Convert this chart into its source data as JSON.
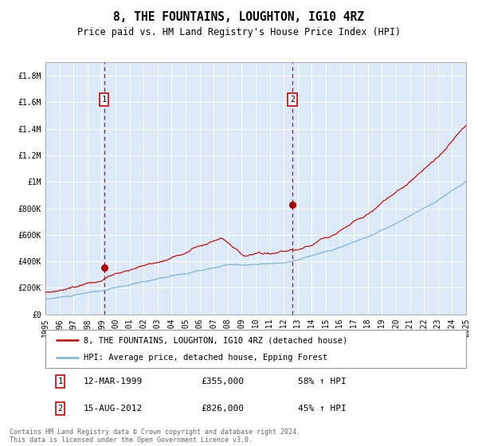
{
  "title": "8, THE FOUNTAINS, LOUGHTON, IG10 4RZ",
  "subtitle": "Price paid vs. HM Land Registry's House Price Index (HPI)",
  "bg_color": "#dce9f7",
  "x_start_year": 1995,
  "x_end_year": 2025,
  "ylim": [
    0,
    1900000
  ],
  "yticks": [
    0,
    200000,
    400000,
    600000,
    800000,
    1000000,
    1200000,
    1400000,
    1600000,
    1800000
  ],
  "ytick_labels": [
    "£0",
    "£200K",
    "£400K",
    "£600K",
    "£800K",
    "£1M",
    "£1.2M",
    "£1.4M",
    "£1.6M",
    "£1.8M"
  ],
  "red_line_color": "#cc0000",
  "blue_line_color": "#7ab3d4",
  "marker_color": "#aa0000",
  "vline_color": "#dd0000",
  "annotation_box_color": "#cc0000",
  "sale1_year": 1999.19,
  "sale1_price": 355000,
  "sale1_label": "1",
  "sale1_date": "12-MAR-1999",
  "sale1_price_str": "£355,000",
  "sale1_hpi": "58% ↑ HPI",
  "sale2_year": 2012.62,
  "sale2_price": 826000,
  "sale2_label": "2",
  "sale2_date": "15-AUG-2012",
  "sale2_price_str": "£826,000",
  "sale2_hpi": "45% ↑ HPI",
  "legend1": "8, THE FOUNTAINS, LOUGHTON, IG10 4RZ (detached house)",
  "legend2": "HPI: Average price, detached house, Epping Forest",
  "footnote": "Contains HM Land Registry data © Crown copyright and database right 2024.\nThis data is licensed under the Open Government Licence v3.0.",
  "title_fontsize": 10.5,
  "subtitle_fontsize": 8.5,
  "tick_fontsize": 7,
  "legend_fontsize": 7.5,
  "info_fontsize": 8
}
